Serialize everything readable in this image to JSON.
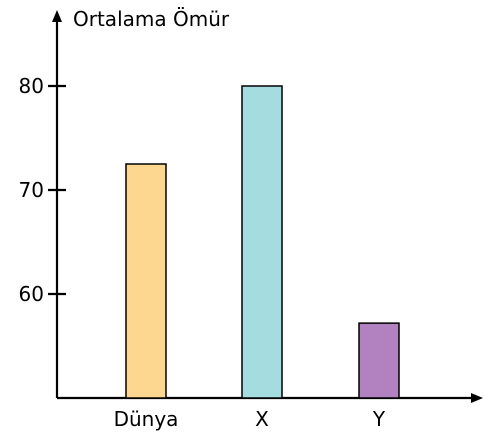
{
  "chart_data": {
    "type": "bar",
    "ylabel": "Ortalama Ömür",
    "xlabel": "",
    "categories": [
      "Dünya",
      "X",
      "Y"
    ],
    "values": [
      72.5,
      80,
      57.2
    ],
    "colors": [
      "#fdd68f",
      "#a5dcdf",
      "#b181c0"
    ],
    "yticks": [
      60,
      70,
      80
    ],
    "ylim": [
      50,
      80
    ],
    "grid": false,
    "legend": "none"
  }
}
